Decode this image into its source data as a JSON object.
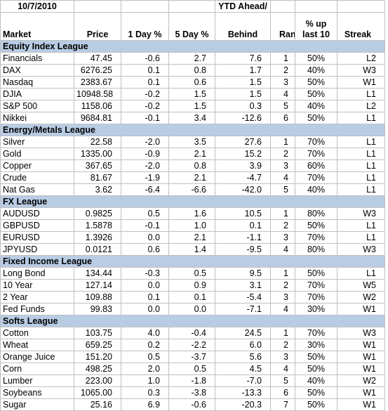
{
  "header": {
    "date": "10/7/2010",
    "ytd": "YTD Ahead/",
    "columns": [
      "Market",
      "Price",
      "1 Day %",
      "5 Day %",
      "Behind",
      "Rank",
      "% up last 10",
      "Streak"
    ]
  },
  "sections": [
    {
      "title": "Equity Index League",
      "rows": [
        [
          "Financials",
          "47.45",
          "-0.6",
          "2.7",
          "7.6",
          "1",
          "50%",
          "L2"
        ],
        [
          "DAX",
          "6276.25",
          "0.1",
          "0.8",
          "1.7",
          "2",
          "40%",
          "W3"
        ],
        [
          "Nasdaq",
          "2383.67",
          "0.1",
          "0.6",
          "1.5",
          "3",
          "50%",
          "W1"
        ],
        [
          "DJIA",
          "10948.58",
          "-0.2",
          "1.5",
          "1.5",
          "4",
          "50%",
          "L1"
        ],
        [
          "S&P 500",
          "1158.06",
          "-0.2",
          "1.5",
          "0.3",
          "5",
          "40%",
          "L2"
        ],
        [
          "Nikkei",
          "9684.81",
          "-0.1",
          "3.4",
          "-12.6",
          "6",
          "50%",
          "L1"
        ]
      ]
    },
    {
      "title": "Energy/Metals League",
      "rows": [
        [
          "Silver",
          "22.58",
          "-2.0",
          "3.5",
          "27.6",
          "1",
          "70%",
          "L1"
        ],
        [
          "Gold",
          "1335.00",
          "-0.9",
          "2.1",
          "15.2",
          "2",
          "70%",
          "L1"
        ],
        [
          "Copper",
          "367.65",
          "-2.0",
          "0.8",
          "3.9",
          "3",
          "60%",
          "L1"
        ],
        [
          "Crude",
          "81.67",
          "-1.9",
          "2.1",
          "-4.7",
          "4",
          "70%",
          "L1"
        ],
        [
          "Nat Gas",
          "3.62",
          "-6.4",
          "-6.6",
          "-42.0",
          "5",
          "40%",
          "L1"
        ]
      ]
    },
    {
      "title": "FX League",
      "rows": [
        [
          "AUDUSD",
          "0.9825",
          "0.5",
          "1.6",
          "10.5",
          "1",
          "80%",
          "W3"
        ],
        [
          "GBPUSD",
          "1.5878",
          "-0.1",
          "1.0",
          "0.1",
          "2",
          "50%",
          "L1"
        ],
        [
          "EURUSD",
          "1.3926",
          "0.0",
          "2.1",
          "-1.1",
          "3",
          "70%",
          "L1"
        ],
        [
          "JPYUSD",
          "0.0121",
          "0.6",
          "1.4",
          "-9.5",
          "4",
          "80%",
          "W3"
        ]
      ]
    },
    {
      "title": "Fixed Income League",
      "rows": [
        [
          "Long Bond",
          "134.44",
          "-0.3",
          "0.5",
          "9.5",
          "1",
          "50%",
          "L1"
        ],
        [
          "10 Year",
          "127.14",
          "0.0",
          "0.9",
          "3.1",
          "2",
          "70%",
          "W5"
        ],
        [
          "2 Year",
          "109.88",
          "0.1",
          "0.1",
          "-5.4",
          "3",
          "70%",
          "W2"
        ],
        [
          "Fed Funds",
          "99.83",
          "0.0",
          "0.0",
          "-7.1",
          "4",
          "30%",
          "W1"
        ]
      ]
    },
    {
      "title": "Softs League",
      "rows": [
        [
          "Cotton",
          "103.75",
          "4.0",
          "-0.4",
          "24.5",
          "1",
          "70%",
          "W3"
        ],
        [
          "Wheat",
          "659.25",
          "0.2",
          "-2.2",
          "6.0",
          "2",
          "30%",
          "W1"
        ],
        [
          "Orange Juice",
          "151.20",
          "0.5",
          "-3.7",
          "5.6",
          "3",
          "50%",
          "W1"
        ],
        [
          "Corn",
          "498.25",
          "2.0",
          "0.5",
          "4.5",
          "4",
          "50%",
          "W1"
        ],
        [
          "Lumber",
          "223.00",
          "1.0",
          "-1.8",
          "-7.0",
          "5",
          "40%",
          "W2"
        ],
        [
          "Soybeans",
          "1065.00",
          "0.3",
          "-3.8",
          "-13.3",
          "6",
          "50%",
          "W1"
        ],
        [
          "Sugar",
          "25.16",
          "6.9",
          "-0.6",
          "-20.3",
          "7",
          "50%",
          "W1"
        ]
      ]
    }
  ]
}
